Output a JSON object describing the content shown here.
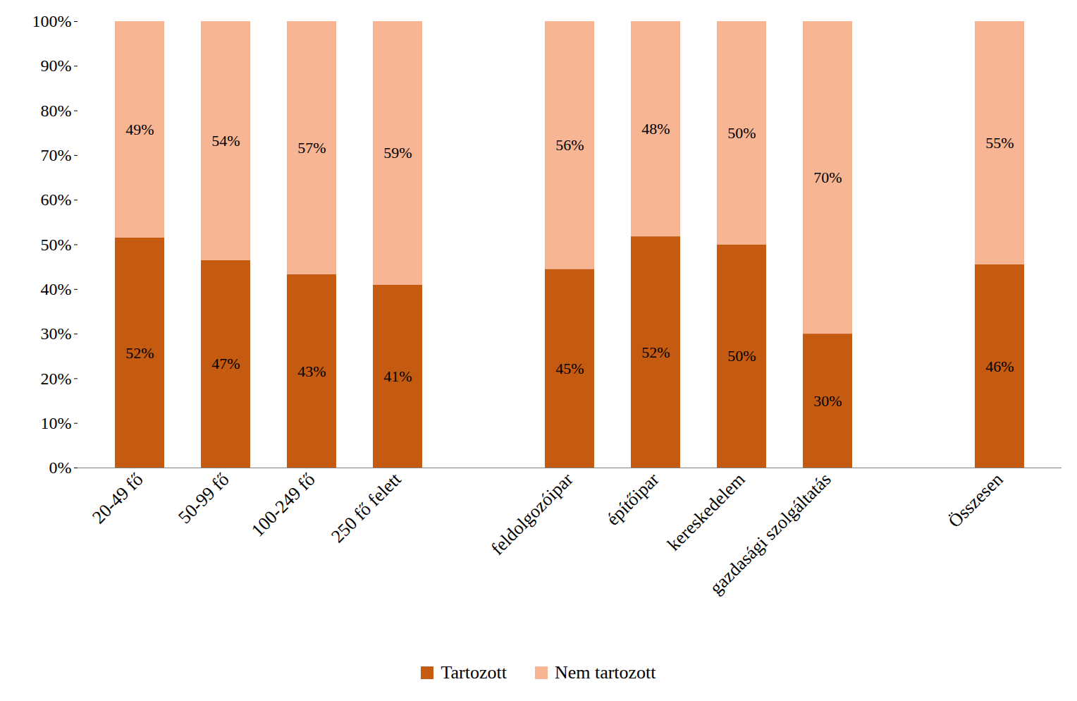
{
  "chart_data": {
    "type": "bar",
    "categories": [
      "20-49 fő",
      "50-99 fő",
      "100-249 fő",
      "250 fő felett",
      null,
      "feldolgozóipar",
      "építőipar",
      "kereskedelem",
      "gazdasági szolgáltatás",
      null,
      "Összesen"
    ],
    "series": [
      {
        "name": "Tartozott",
        "color": "#c55a11",
        "values": [
          51.5,
          46.5,
          43.3,
          41,
          null,
          44.5,
          51.8,
          50,
          30,
          null,
          45.5
        ],
        "value_labels": [
          "52%",
          "47%",
          "43%",
          "41%",
          null,
          "45%",
          "52%",
          "50%",
          "30%",
          null,
          "46%"
        ]
      },
      {
        "name": "Nem tartozott",
        "color": "#f8b593",
        "values": [
          48.5,
          53.5,
          56.7,
          59,
          null,
          55.5,
          48.2,
          50,
          70,
          null,
          54.5
        ],
        "value_labels": [
          "49%",
          "54%",
          "57%",
          "59%",
          null,
          "56%",
          "48%",
          "50%",
          "70%",
          null,
          "55%"
        ]
      }
    ],
    "ylim": [
      0,
      100
    ],
    "yticks": [
      {
        "value": 0,
        "label": "0%"
      },
      {
        "value": 10,
        "label": "10%"
      },
      {
        "value": 20,
        "label": "20%"
      },
      {
        "value": 30,
        "label": "30%"
      },
      {
        "value": 40,
        "label": "40%"
      },
      {
        "value": 50,
        "label": "50%"
      },
      {
        "value": 60,
        "label": "60%"
      },
      {
        "value": 70,
        "label": "70%"
      },
      {
        "value": 80,
        "label": "80%"
      },
      {
        "value": 90,
        "label": "90%"
      },
      {
        "value": 100,
        "label": "100%"
      }
    ],
    "stacked": true,
    "data_labels": true,
    "grid": false,
    "legend": "bottom"
  }
}
